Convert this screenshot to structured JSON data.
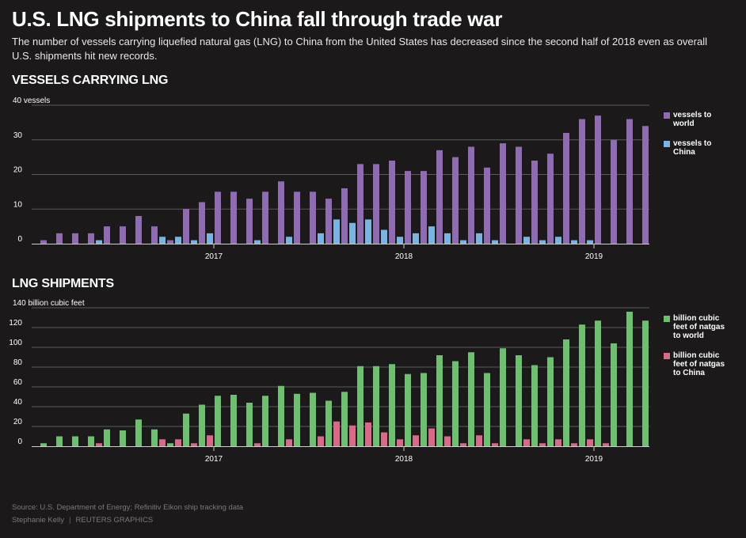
{
  "title": "U.S. LNG shipments to China fall through trade war",
  "subtitle": "The number of vessels carrying liquefied natural gas (LNG) to China from the United States has decreased since the second half of 2018 even as overall U.S. shipments hit new records.",
  "source": "Source: U.S. Department of Energy; Refinitiv Eikon ship tracking data",
  "author": "Stephanie Kelly",
  "brand": "REUTERS GRAPHICS",
  "colors": {
    "purple": "#8f6bb1",
    "blue": "#7bb4e0",
    "green": "#6fbf73",
    "pink": "#d86a88",
    "grid": "#5a5a5a",
    "axis": "#cccccc"
  },
  "chart_data": [
    {
      "type": "bar",
      "title": "VESSELS CARRYING LNG",
      "unit_label": "40 vessels",
      "ylim": [
        0,
        40
      ],
      "yticks": [
        0,
        10,
        20,
        30,
        40
      ],
      "x_tick_labels": [
        {
          "label": "2017",
          "index": 11
        },
        {
          "label": "2018",
          "index": 23
        },
        {
          "label": "2019",
          "index": 35
        }
      ],
      "grid": true,
      "legend_position": "right",
      "series": [
        {
          "name": "vessels to world",
          "color": "#8f6bb1",
          "values": [
            1,
            3,
            3,
            3,
            5,
            5,
            8,
            5,
            1,
            10,
            12,
            15,
            15,
            13,
            15,
            18,
            15,
            15,
            13,
            16,
            23,
            23,
            24,
            21,
            21,
            27,
            25,
            28,
            22,
            29,
            28,
            24,
            26,
            32,
            36,
            37,
            30,
            36,
            34
          ]
        },
        {
          "name": "vessels to China",
          "color": "#7bb4e0",
          "values": [
            0,
            0,
            0,
            0,
            1,
            0,
            0,
            0,
            2,
            2,
            1,
            3,
            0,
            0,
            1,
            0,
            2,
            0,
            3,
            7,
            6,
            7,
            4,
            2,
            3,
            5,
            3,
            1,
            3,
            1,
            0,
            2,
            1,
            2,
            1,
            1,
            0,
            0,
            0
          ]
        }
      ]
    },
    {
      "type": "bar",
      "title": "LNG SHIPMENTS",
      "unit_label": "140 billion cubic feet",
      "ylim": [
        0,
        140
      ],
      "yticks": [
        0,
        20,
        40,
        60,
        80,
        100,
        120,
        140
      ],
      "x_tick_labels": [
        {
          "label": "2017",
          "index": 11
        },
        {
          "label": "2018",
          "index": 23
        },
        {
          "label": "2019",
          "index": 35
        }
      ],
      "grid": true,
      "legend_position": "right",
      "series": [
        {
          "name": "billion cubic feet of natgas to world",
          "color": "#6fbf73",
          "values": [
            3,
            10,
            10,
            10,
            17,
            16,
            27,
            17,
            3,
            33,
            42,
            51,
            52,
            44,
            51,
            61,
            53,
            54,
            46,
            55,
            81,
            81,
            83,
            73,
            74,
            92,
            86,
            95,
            74,
            99,
            92,
            82,
            90,
            108,
            123,
            127,
            104,
            136,
            127
          ]
        },
        {
          "name": "billion cubic feet of natgas to China",
          "color": "#d86a88",
          "values": [
            0,
            0,
            0,
            0,
            3,
            0,
            0,
            0,
            7,
            7,
            3,
            11,
            0,
            0,
            3,
            0,
            7,
            0,
            10,
            25,
            21,
            24,
            14,
            7,
            11,
            18,
            10,
            3,
            11,
            3,
            0,
            7,
            3,
            7,
            3,
            7,
            3,
            0,
            0
          ]
        }
      ]
    }
  ]
}
